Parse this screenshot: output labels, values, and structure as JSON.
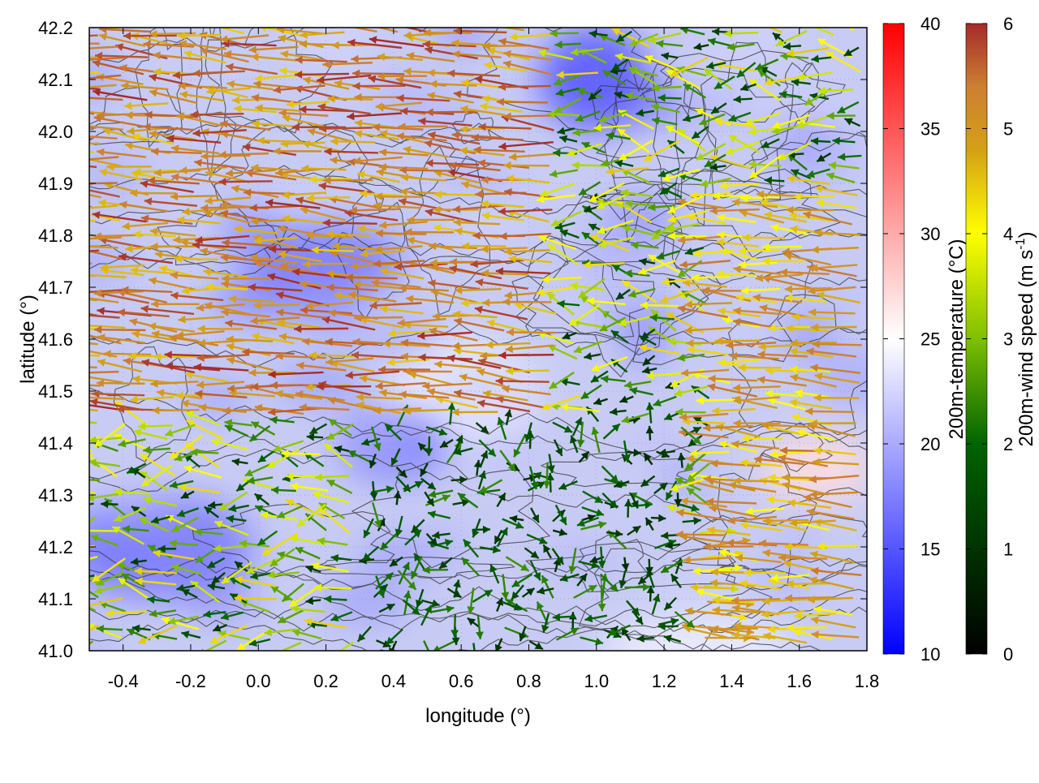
{
  "chart_data": {
    "type": "heatmap",
    "title": "",
    "xlabel": "longitude (°)",
    "ylabel": "latitude (°)",
    "xlim": [
      -0.5,
      1.8
    ],
    "ylim": [
      41.0,
      42.2
    ],
    "x_ticks": [
      "-0.4",
      "-0.2",
      "0.0",
      "0.2",
      "0.4",
      "0.6",
      "0.8",
      "1.0",
      "1.2",
      "1.4",
      "1.6",
      "1.8"
    ],
    "y_ticks": [
      "41.0",
      "41.1",
      "41.2",
      "41.3",
      "41.4",
      "41.5",
      "41.6",
      "41.7",
      "41.8",
      "41.9",
      "42.0",
      "42.1",
      "42.2"
    ],
    "grid": true,
    "temperature_colorbar": {
      "label": "200m-temperature (°C)",
      "range": [
        10,
        40
      ],
      "ticks": [
        "10",
        "15",
        "20",
        "25",
        "30",
        "35",
        "40"
      ],
      "colors": [
        "#0000ff",
        "#ffffff",
        "#ff0000"
      ]
    },
    "wind_colorbar": {
      "label_main": "200m-wind speed (m s",
      "label_sup": "-1",
      "label_end": ")",
      "range": [
        0,
        6
      ],
      "ticks": [
        "0",
        "1",
        "2",
        "3",
        "4",
        "5",
        "6"
      ],
      "colors": [
        "#000000",
        "#006400",
        "#7fbf00",
        "#ffff00",
        "#d4a017",
        "#cd7f32",
        "#a52a2a"
      ]
    },
    "temperature_background": {
      "approx_range": [
        15,
        28
      ],
      "warmer_regions": [
        {
          "lon": 1.65,
          "lat": 41.35,
          "temp": 27
        },
        {
          "lon": 0.6,
          "lat": 41.5,
          "temp": 24
        },
        {
          "lon": 1.3,
          "lat": 41.0,
          "temp": 24
        }
      ],
      "cooler_regions": [
        {
          "lon": 1.0,
          "lat": 42.1,
          "temp": 15
        },
        {
          "lon": 0.2,
          "lat": 41.75,
          "temp": 17
        },
        {
          "lon": -0.3,
          "lat": 41.2,
          "temp": 17
        },
        {
          "lon": 0.4,
          "lat": 41.4,
          "temp": 17
        }
      ]
    },
    "wind_regions": [
      {
        "name": "northwest-strong",
        "lat_min": 41.45,
        "lat_max": 42.2,
        "lon_min": -0.5,
        "lon_max": 0.9,
        "direction": "westward",
        "speed": 6
      },
      {
        "name": "east-strong",
        "lat_min": 41.0,
        "lat_max": 41.9,
        "lon_min": 1.35,
        "lon_max": 1.8,
        "direction": "westward",
        "speed": 5.5
      },
      {
        "name": "central-weak",
        "lat_min": 41.0,
        "lat_max": 41.45,
        "lon_min": 0.3,
        "lon_max": 1.3,
        "direction": "mixed",
        "speed": 2.5
      },
      {
        "name": "southeast-eastward",
        "lat_min": 41.0,
        "lat_max": 41.25,
        "lon_min": 1.2,
        "lon_max": 1.8,
        "direction": "eastward",
        "speed": 5
      }
    ]
  }
}
